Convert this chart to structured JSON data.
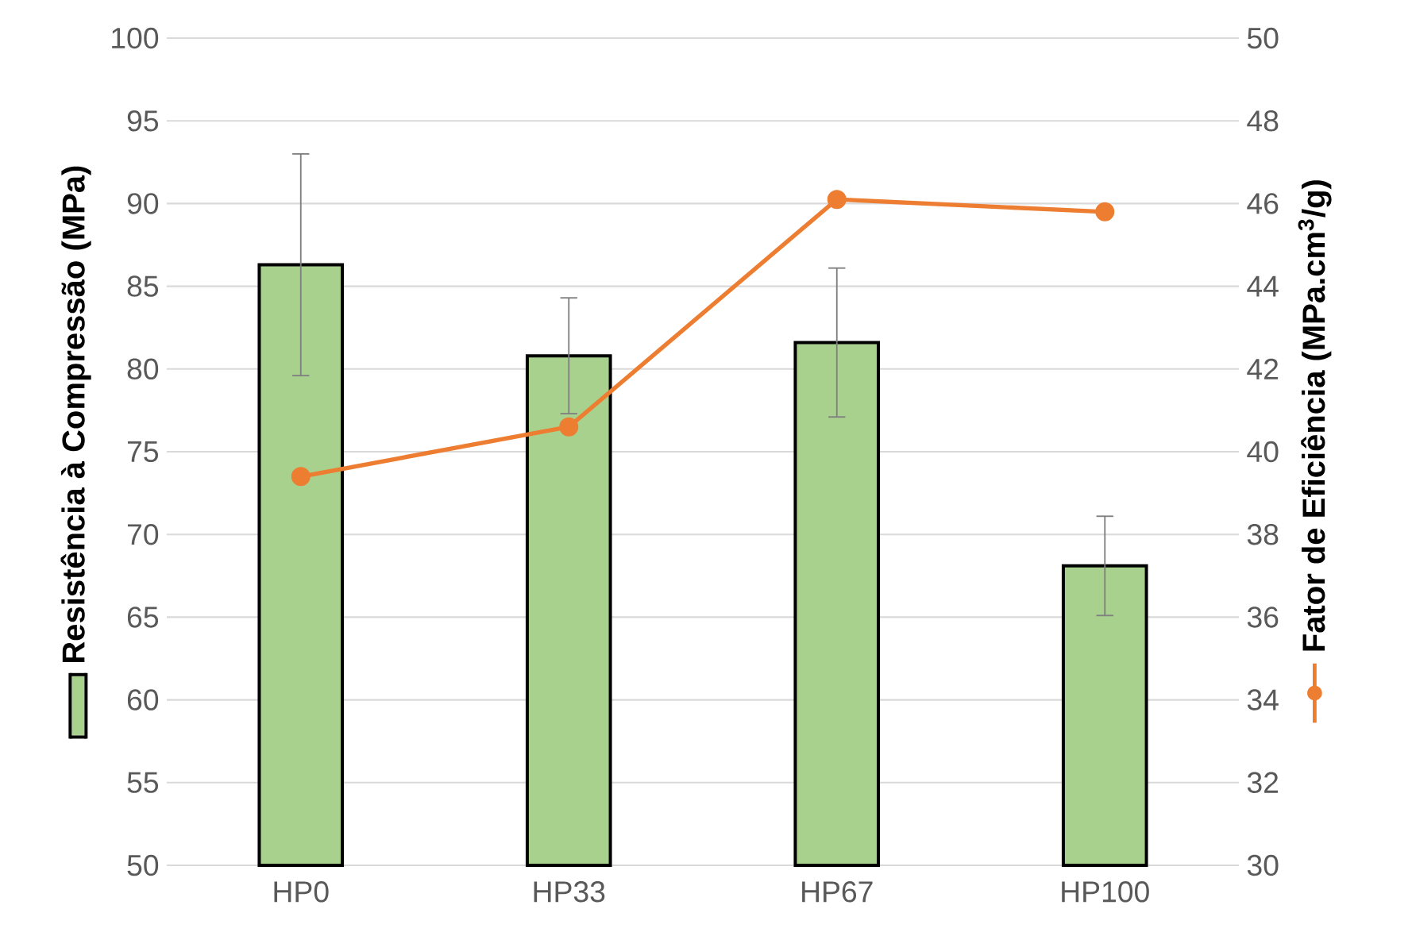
{
  "chart_data": {
    "type": "bar",
    "ylabel": "Resistência à Compressão (MPa)",
    "y2label": "Fator de Eficiência (MPa.cm$^{3}$/g)",
    "categories": [
      "HP0",
      "HP33",
      "HP67",
      "HP100"
    ],
    "series": [
      {
        "color": "#a9d18e",
        "values": [
          86.3,
          80.8,
          81.6,
          68.1
        ],
        "errors": [
          6.7,
          3.5,
          4.5,
          3.0
        ]
      },
      {
        "type": "line",
        "axis": "y2",
        "color": "#ed7d31",
        "values": [
          39.4,
          40.6,
          46.1,
          45.8
        ],
        "marker": "circle",
        "line_style": "solid"
      }
    ],
    "ylim": [
      50,
      100
    ],
    "yticks": [
      50,
      55,
      60,
      65,
      70,
      75,
      80,
      85,
      90,
      95,
      100
    ],
    "y2lim": [
      30,
      50
    ],
    "y2ticks": [
      30,
      32,
      34,
      36,
      38,
      40,
      42,
      44,
      46,
      48,
      50
    ],
    "grid": "y"
  }
}
